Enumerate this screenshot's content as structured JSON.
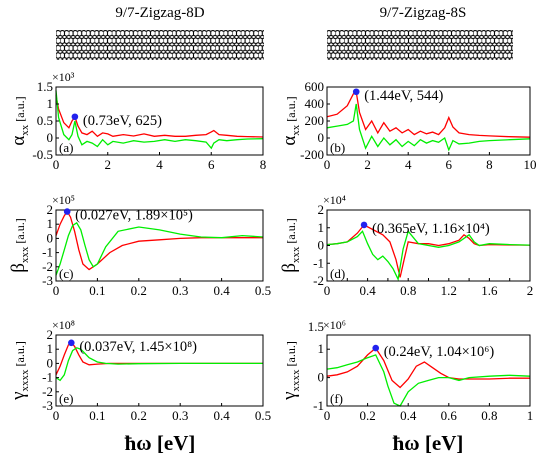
{
  "figure": {
    "columns": [
      {
        "title": "9/7-Zigzag-8D"
      },
      {
        "title": "9/7-Zigzag-8S"
      }
    ],
    "xlabel": "ħω [eV]",
    "colors": {
      "red": "#ff0000",
      "green": "#00ee00",
      "marker": "#2222ee"
    }
  },
  "chart_data": [
    {
      "type": "line",
      "panel": "(a)",
      "column": "9/7-Zigzag-8D",
      "ylabel": "α",
      "ysub": "xx",
      "yunit": "[a.u.]",
      "yexp": "×10³",
      "xlim": [
        0,
        8
      ],
      "ylim": [
        -0.5,
        1.5
      ],
      "xticks": [
        0,
        2,
        4,
        6,
        8
      ],
      "yticks": [
        -0.5,
        0,
        0.5,
        1,
        1.5
      ],
      "xtick_labels": [
        "0",
        "2",
        "4",
        "6",
        "8"
      ],
      "ytick_labels": [
        "-0.5",
        "0",
        "0.5",
        "1",
        "1.5"
      ],
      "annotation": "(0.73eV, 625)",
      "marker": [
        0.73,
        0.625
      ],
      "series": [
        {
          "color": "red",
          "x": [
            0,
            0.1,
            0.3,
            0.5,
            0.62,
            0.73,
            0.85,
            1.0,
            1.2,
            1.4,
            1.6,
            1.8,
            2.0,
            2.2,
            2.6,
            3.0,
            3.4,
            3.8,
            4.2,
            4.6,
            5.0,
            5.4,
            5.8,
            6.0,
            6.1,
            6.3,
            6.6,
            7.0,
            7.4,
            8.0
          ],
          "y": [
            1.25,
            0.85,
            0.45,
            0.3,
            0.5,
            0.62,
            0.35,
            0.15,
            0.1,
            0.2,
            0.05,
            0.15,
            0.12,
            0.05,
            0.1,
            0.06,
            0.12,
            0.05,
            0.08,
            0.05,
            0.05,
            0.08,
            0.1,
            0.18,
            0.22,
            0.1,
            0.08,
            0.05,
            0.04,
            0.03
          ]
        },
        {
          "color": "green",
          "x": [
            0,
            0.1,
            0.3,
            0.5,
            0.62,
            0.73,
            0.85,
            1.0,
            1.2,
            1.4,
            1.6,
            1.8,
            2.0,
            2.2,
            2.6,
            3.0,
            3.4,
            3.8,
            4.2,
            4.6,
            5.0,
            5.4,
            5.8,
            6.0,
            6.1,
            6.3,
            6.6,
            7.0,
            7.4,
            8.0
          ],
          "y": [
            1.4,
            0.6,
            0.1,
            -0.05,
            0.1,
            0.5,
            0.05,
            -0.2,
            -0.1,
            -0.15,
            -0.25,
            -0.05,
            -0.2,
            -0.1,
            -0.15,
            -0.08,
            -0.12,
            -0.1,
            -0.05,
            -0.1,
            -0.05,
            -0.08,
            -0.12,
            -0.3,
            -0.15,
            -0.05,
            -0.08,
            -0.05,
            -0.03,
            -0.02
          ]
        }
      ]
    },
    {
      "type": "line",
      "panel": "(b)",
      "column": "9/7-Zigzag-8S",
      "ylabel": "α",
      "ysub": "xx",
      "yunit": "[a.u.]",
      "yexp": "",
      "xlim": [
        0,
        10
      ],
      "ylim": [
        -200,
        600
      ],
      "xticks": [
        0,
        2,
        4,
        6,
        8,
        10
      ],
      "yticks": [
        -200,
        0,
        200,
        400,
        600
      ],
      "xtick_labels": [
        "0",
        "2",
        "4",
        "6",
        "8",
        "10"
      ],
      "ytick_labels": [
        "-200",
        "0",
        "200",
        "400",
        "600"
      ],
      "annotation": "(1.44eV, 544)",
      "marker": [
        1.44,
        544
      ],
      "series": [
        {
          "color": "red",
          "x": [
            0,
            0.5,
            1.0,
            1.3,
            1.44,
            1.6,
            1.9,
            2.2,
            2.5,
            2.8,
            3.1,
            3.4,
            3.7,
            4.0,
            4.3,
            4.6,
            4.9,
            5.2,
            5.5,
            5.8,
            6.0,
            6.2,
            6.5,
            7.0,
            7.5,
            8.0,
            9.0,
            10.0
          ],
          "y": [
            250,
            280,
            380,
            520,
            544,
            300,
            100,
            200,
            60,
            180,
            80,
            120,
            60,
            100,
            40,
            80,
            50,
            70,
            40,
            120,
            240,
            130,
            60,
            40,
            30,
            25,
            15,
            10
          ]
        },
        {
          "color": "green",
          "x": [
            0,
            0.5,
            1.0,
            1.3,
            1.44,
            1.6,
            1.9,
            2.2,
            2.5,
            2.8,
            3.1,
            3.4,
            3.7,
            4.0,
            4.3,
            4.6,
            4.9,
            5.2,
            5.5,
            5.8,
            6.0,
            6.2,
            6.5,
            7.0,
            7.5,
            8.0,
            9.0,
            10.0
          ],
          "y": [
            120,
            140,
            160,
            200,
            400,
            100,
            -120,
            20,
            -100,
            0,
            -80,
            -20,
            -100,
            -40,
            -90,
            -20,
            -60,
            -30,
            -50,
            0,
            -140,
            -30,
            -70,
            -60,
            -40,
            -30,
            -20,
            -10
          ]
        }
      ]
    },
    {
      "type": "line",
      "panel": "(c)",
      "column": "9/7-Zigzag-8D",
      "ylabel": "β",
      "ysub": "xxx",
      "yunit": "[a.u.]",
      "yexp": "×10⁵",
      "xlim": [
        0,
        0.5
      ],
      "ylim": [
        -3,
        2
      ],
      "xticks": [
        0,
        0.1,
        0.2,
        0.3,
        0.4,
        0.5
      ],
      "yticks": [
        -3,
        -2,
        -1,
        0,
        1,
        2
      ],
      "xtick_labels": [
        "0",
        "0.1",
        "0.2",
        "0.3",
        "0.4",
        "0.5"
      ],
      "ytick_labels": [
        "-3",
        "-2",
        "-1",
        "0",
        "1",
        "2"
      ],
      "annotation": "(0.027eV, 1.89×10⁵)",
      "marker": [
        0.027,
        1.89
      ],
      "series": [
        {
          "color": "red",
          "x": [
            0,
            0.01,
            0.02,
            0.027,
            0.035,
            0.045,
            0.055,
            0.065,
            0.08,
            0.1,
            0.13,
            0.16,
            0.2,
            0.25,
            0.3,
            0.35,
            0.4,
            0.45,
            0.5
          ],
          "y": [
            0.2,
            1.0,
            1.6,
            1.89,
            1.5,
            0.5,
            -0.8,
            -1.8,
            -2.2,
            -1.8,
            -1.0,
            -0.5,
            -0.2,
            -0.1,
            0,
            0.05,
            0.05,
            0.05,
            0.05
          ]
        },
        {
          "color": "green",
          "x": [
            0,
            0.01,
            0.02,
            0.03,
            0.04,
            0.05,
            0.06,
            0.07,
            0.08,
            0.09,
            0.1,
            0.12,
            0.15,
            0.2,
            0.25,
            0.3,
            0.35,
            0.4,
            0.45,
            0.5
          ],
          "y": [
            -2.6,
            -1.8,
            -0.8,
            0.2,
            0.9,
            1.1,
            0.6,
            -0.5,
            -1.5,
            -2.0,
            -1.8,
            -0.6,
            0.5,
            0.8,
            0.6,
            0.3,
            0.1,
            0.05,
            0.2,
            0.1
          ]
        }
      ]
    },
    {
      "type": "line",
      "panel": "(d)",
      "column": "9/7-Zigzag-8S",
      "ylabel": "β",
      "ysub": "xxx",
      "yunit": "[a.u.]",
      "yexp": "×10⁴",
      "xlim": [
        0,
        2
      ],
      "ylim": [
        -2,
        2
      ],
      "xticks": [
        0,
        0.2,
        0.4,
        0.6,
        0.8,
        1,
        1.2,
        1.4,
        1.6,
        1.8,
        2
      ],
      "yticks": [
        -2,
        -1,
        0,
        1,
        2
      ],
      "xtick_labels": [
        "0",
        "",
        "0.4",
        "",
        "0.8",
        "",
        "1.2",
        "",
        "1.6",
        "",
        "2"
      ],
      "ytick_labels": [
        "-2",
        "-1",
        "0",
        "1",
        "2"
      ],
      "annotation": "(0.365eV, 1.16×10⁴)",
      "marker": [
        0.365,
        1.16
      ],
      "series": [
        {
          "color": "red",
          "x": [
            0,
            0.1,
            0.2,
            0.3,
            0.365,
            0.45,
            0.55,
            0.62,
            0.68,
            0.72,
            0.76,
            0.8,
            0.9,
            1.0,
            1.1,
            1.2,
            1.3,
            1.35,
            1.4,
            1.45,
            1.5,
            1.6,
            1.8,
            2.0
          ],
          "y": [
            0.05,
            0.1,
            0.2,
            0.7,
            1.16,
            0.9,
            0.6,
            0.2,
            -0.8,
            -1.8,
            -0.8,
            0.2,
            0.1,
            0.1,
            0.0,
            0.1,
            0.3,
            0.6,
            0.4,
            0.1,
            0.0,
            0.05,
            0.03,
            0.02
          ]
        },
        {
          "color": "green",
          "x": [
            0,
            0.1,
            0.2,
            0.3,
            0.35,
            0.4,
            0.45,
            0.5,
            0.55,
            0.6,
            0.65,
            0.7,
            0.75,
            0.8,
            0.9,
            1.0,
            1.1,
            1.2,
            1.3,
            1.4,
            1.45,
            1.5,
            1.6,
            1.8,
            2.0
          ],
          "y": [
            0.05,
            0.1,
            0.2,
            0.5,
            0.8,
            0.1,
            -0.5,
            -0.8,
            -0.6,
            -0.9,
            -1.3,
            -1.9,
            -0.2,
            0.8,
            0.1,
            0.0,
            -0.1,
            0.0,
            0.2,
            0.6,
            0.2,
            0.0,
            0.1,
            0.05,
            0.02
          ]
        }
      ]
    },
    {
      "type": "line",
      "panel": "(e)",
      "column": "9/7-Zigzag-8D",
      "ylabel": "γ",
      "ysub": "xxxx",
      "yunit": "[a.u.]",
      "yexp": "×10⁸",
      "xlim": [
        0,
        0.5
      ],
      "ylim": [
        -3,
        2
      ],
      "xticks": [
        0,
        0.1,
        0.2,
        0.3,
        0.4,
        0.5
      ],
      "yticks": [
        -3,
        -2,
        -1,
        0,
        1,
        2
      ],
      "xtick_labels": [
        "0",
        "0.1",
        "0.2",
        "0.3",
        "0.4",
        "0.5"
      ],
      "ytick_labels": [
        "-3",
        "-2",
        "-1",
        "0",
        "1",
        "2"
      ],
      "annotation": "(0.037eV, 1.45×10⁸)",
      "marker": [
        0.037,
        1.45
      ],
      "series": [
        {
          "color": "red",
          "x": [
            0,
            0.01,
            0.02,
            0.03,
            0.037,
            0.045,
            0.055,
            0.065,
            0.08,
            0.1,
            0.13,
            0.2,
            0.3,
            0.4,
            0.5
          ],
          "y": [
            -0.8,
            -0.2,
            0.6,
            1.3,
            1.45,
            1.2,
            0.6,
            0.1,
            -0.1,
            -0.05,
            0,
            0,
            0,
            0,
            0
          ]
        },
        {
          "color": "green",
          "x": [
            0,
            0.01,
            0.02,
            0.03,
            0.04,
            0.05,
            0.06,
            0.07,
            0.08,
            0.1,
            0.12,
            0.15,
            0.2,
            0.3,
            0.4,
            0.5
          ],
          "y": [
            -1.0,
            -1.2,
            -0.8,
            0.2,
            0.9,
            1.1,
            1.0,
            0.7,
            0.4,
            0.1,
            0.0,
            -0.05,
            -0.02,
            0,
            0,
            0
          ]
        }
      ]
    },
    {
      "type": "line",
      "panel": "(f)",
      "column": "9/7-Zigzag-8S",
      "ylabel": "γ",
      "ysub": "xxxx",
      "yunit": "[a.u.]",
      "yexp": "×10⁶",
      "xlim": [
        0,
        1
      ],
      "ylim": [
        -1,
        1.5
      ],
      "xticks": [
        0,
        0.2,
        0.4,
        0.6,
        0.8,
        1
      ],
      "yticks": [
        -1,
        0,
        1
      ],
      "xtick_labels": [
        "0",
        "0.2",
        "0.4",
        "0.6",
        "0.8",
        "1"
      ],
      "ytick_labels": [
        "-1",
        "0",
        "1"
      ],
      "extra_ytick_label": "1.5",
      "annotation": "(0.24eV, 1.04×10⁶)",
      "marker": [
        0.24,
        1.04
      ],
      "series": [
        {
          "color": "red",
          "x": [
            0,
            0.05,
            0.1,
            0.15,
            0.2,
            0.24,
            0.28,
            0.32,
            0.36,
            0.4,
            0.44,
            0.48,
            0.52,
            0.56,
            0.6,
            0.65,
            0.7,
            0.8,
            0.9,
            1.0
          ],
          "y": [
            0.05,
            0.1,
            0.2,
            0.4,
            0.8,
            1.04,
            0.6,
            -0.1,
            -0.35,
            -0.05,
            0.4,
            0.55,
            0.35,
            0.15,
            0.0,
            -0.05,
            -0.05,
            -0.05,
            -0.02,
            -0.02
          ]
        },
        {
          "color": "green",
          "x": [
            0,
            0.05,
            0.1,
            0.15,
            0.2,
            0.24,
            0.28,
            0.3,
            0.33,
            0.36,
            0.4,
            0.45,
            0.5,
            0.55,
            0.6,
            0.65,
            0.7,
            0.8,
            0.9,
            1.0
          ],
          "y": [
            0.3,
            0.35,
            0.45,
            0.55,
            0.7,
            0.8,
            0.2,
            -0.3,
            -0.9,
            -1.0,
            -0.5,
            -0.2,
            -0.1,
            0.0,
            0.0,
            -0.1,
            0.0,
            0.05,
            0.08,
            0.05
          ]
        }
      ]
    }
  ]
}
